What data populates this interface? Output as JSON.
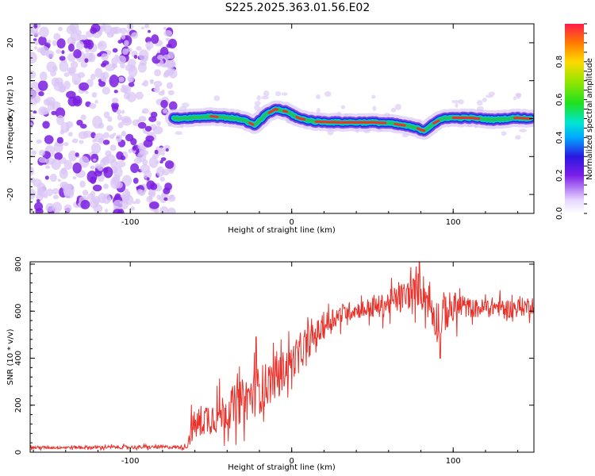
{
  "title": "S225.2025.363.01.56.E02",
  "colors": {
    "snr_line": "#e8322b",
    "ridge_core": "#e8322b",
    "ridge_mid": "#22c25a",
    "ridge_outer": "#1a2bd6",
    "noise_dark": "#7a1ee0",
    "noise_light": "#d9c6f5",
    "axis": "#000000"
  },
  "chart_data": [
    {
      "type": "heatmap",
      "name": "spectrogram",
      "xlabel": "Height of straight line (km)",
      "ylabel": "Frequency (Hz)",
      "xlim": [
        -162,
        150
      ],
      "ylim": [
        -25,
        25
      ],
      "x_ticks": [
        -100,
        0,
        100
      ],
      "y_ticks": [
        -20,
        -10,
        0,
        10,
        20
      ],
      "noise_region_x": [
        -162,
        -73
      ],
      "ridge_track": [
        {
          "x": -73,
          "y": 0.0
        },
        {
          "x": -60,
          "y": 0.3
        },
        {
          "x": -50,
          "y": 0.6
        },
        {
          "x": -40,
          "y": 0.3
        },
        {
          "x": -30,
          "y": -0.3
        },
        {
          "x": -23,
          "y": -1.8
        },
        {
          "x": -16,
          "y": 1.0
        },
        {
          "x": -10,
          "y": 2.5
        },
        {
          "x": -3,
          "y": 1.8
        },
        {
          "x": 5,
          "y": 0.0
        },
        {
          "x": 15,
          "y": -0.8
        },
        {
          "x": 30,
          "y": -1.0
        },
        {
          "x": 50,
          "y": -1.0
        },
        {
          "x": 60,
          "y": -1.2
        },
        {
          "x": 70,
          "y": -1.8
        },
        {
          "x": 78,
          "y": -2.6
        },
        {
          "x": 82,
          "y": -3.2
        },
        {
          "x": 88,
          "y": -1.2
        },
        {
          "x": 95,
          "y": 0.2
        },
        {
          "x": 110,
          "y": 0.2
        },
        {
          "x": 125,
          "y": -0.3
        },
        {
          "x": 140,
          "y": 0.2
        },
        {
          "x": 148,
          "y": 0.0
        }
      ],
      "colorbar": {
        "label": "Normalized spectral amplitude",
        "range": [
          0.0,
          1.0
        ],
        "ticks": [
          "0.0",
          "0.2",
          "0.4",
          "0.6",
          "0.8"
        ]
      }
    },
    {
      "type": "line",
      "name": "snr",
      "xlabel": "Height of straight line (km)",
      "ylabel": "SNR (10 * v/v)",
      "xlim": [
        -162,
        150
      ],
      "ylim": [
        0,
        810
      ],
      "x_ticks": [
        -100,
        0,
        100
      ],
      "y_ticks": [
        0,
        200,
        400,
        600,
        800
      ],
      "trend": [
        {
          "x": -162,
          "y": 20
        },
        {
          "x": -65,
          "y": 22
        },
        {
          "x": -62,
          "y": 100
        },
        {
          "x": -55,
          "y": 140
        },
        {
          "x": -45,
          "y": 160
        },
        {
          "x": -35,
          "y": 200
        },
        {
          "x": -25,
          "y": 240
        },
        {
          "x": -15,
          "y": 290
        },
        {
          "x": -5,
          "y": 350
        },
        {
          "x": 5,
          "y": 420
        },
        {
          "x": 15,
          "y": 500
        },
        {
          "x": 25,
          "y": 570
        },
        {
          "x": 35,
          "y": 600
        },
        {
          "x": 45,
          "y": 610
        },
        {
          "x": 55,
          "y": 620
        },
        {
          "x": 65,
          "y": 650
        },
        {
          "x": 75,
          "y": 680
        },
        {
          "x": 80,
          "y": 700
        },
        {
          "x": 85,
          "y": 640
        },
        {
          "x": 90,
          "y": 560
        },
        {
          "x": 95,
          "y": 600
        },
        {
          "x": 105,
          "y": 620
        },
        {
          "x": 115,
          "y": 610
        },
        {
          "x": 125,
          "y": 620
        },
        {
          "x": 135,
          "y": 610
        },
        {
          "x": 145,
          "y": 620
        },
        {
          "x": 150,
          "y": 630
        }
      ],
      "noise_amplitude": [
        {
          "x": -162,
          "y": 8
        },
        {
          "x": -65,
          "y": 10
        },
        {
          "x": -62,
          "y": 80
        },
        {
          "x": -20,
          "y": 130
        },
        {
          "x": 10,
          "y": 80
        },
        {
          "x": 40,
          "y": 45
        },
        {
          "x": 78,
          "y": 90
        },
        {
          "x": 92,
          "y": 120
        },
        {
          "x": 110,
          "y": 50
        },
        {
          "x": 150,
          "y": 50
        }
      ],
      "peaks": [
        {
          "x": 79,
          "y": 810
        },
        {
          "x": 92,
          "y": 400
        },
        {
          "x": -22,
          "y": 490
        }
      ]
    }
  ]
}
